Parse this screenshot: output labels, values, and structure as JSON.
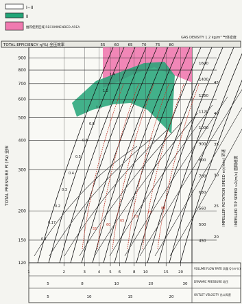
{
  "chart_data": {
    "type": "line",
    "title": "",
    "gas_density_label": "GAS DENSITY 1.2 kg/m³ 气体密度",
    "efficiency_header": "TOTAL EFFICIENCY η(%) 全压效率",
    "efficiency_ticks": [
      "55",
      "60",
      "65",
      "70",
      "75",
      "80"
    ],
    "ylabel": "TOTAL PRESSURE Pt (Pa) 全压",
    "right_label_1": "IMPELLER ROTATION SPEED n(r/min) 转速",
    "right_label_2": "IMPELLER TIP SPEED u2(m/s) 圆周速度",
    "x_scale_1_label": "VOLUME FLOW RATE 风量 Q (m³/s)",
    "x_scale_2_label": "DYNAMIC PRESSURE 动压",
    "x_scale_3_label": "OUTLET VELOCITY 出口风速",
    "legend": [
      {
        "label": "I~II",
        "color": "#ffffff"
      },
      {
        "label": "II",
        "color": "#22a577"
      },
      {
        "label": "推荐使用区域 RECOMMENDED AREA",
        "color": "#f07ab0"
      }
    ],
    "yticks": [
      {
        "label": "900",
        "value": 900
      },
      {
        "label": "800",
        "value": 800
      },
      {
        "label": "700",
        "value": 700
      },
      {
        "label": "600",
        "value": 600
      },
      {
        "label": "500",
        "value": 500
      },
      {
        "label": "400",
        "value": 400
      },
      {
        "label": "300",
        "value": 300
      },
      {
        "label": "200",
        "value": 200
      },
      {
        "label": "150",
        "value": 150
      },
      {
        "label": "120",
        "value": 120
      }
    ],
    "ylim": [
      120,
      1000
    ],
    "xlim": [
      1,
      25
    ],
    "speed_ticks": [
      "1600",
      "1400",
      "1250",
      "1120",
      "1000",
      "900",
      "800",
      "700",
      "630",
      "560",
      "500",
      "450"
    ],
    "tip_speed_ticks": [
      "45",
      "40",
      "35",
      "30",
      "25",
      "20"
    ],
    "x_scale_1_ticks": [
      "1",
      "2",
      "3",
      "4",
      "5",
      "6",
      "8",
      "10",
      "15",
      "20"
    ],
    "x_scale_2_ticks": [
      "5",
      "8",
      "10",
      "20",
      "30"
    ],
    "x_scale_3_ticks": [
      "5",
      "10",
      "15",
      "20"
    ],
    "size_labels": [
      "0.1",
      "0.17",
      "0.2",
      "0.3",
      "0.4",
      "0.5",
      "0.6",
      "0.8",
      "1.0",
      "1.2",
      "1.4"
    ],
    "efficiency_curve_labels": [
      "55",
      "60",
      "65",
      "70",
      "75",
      "80"
    ]
  }
}
